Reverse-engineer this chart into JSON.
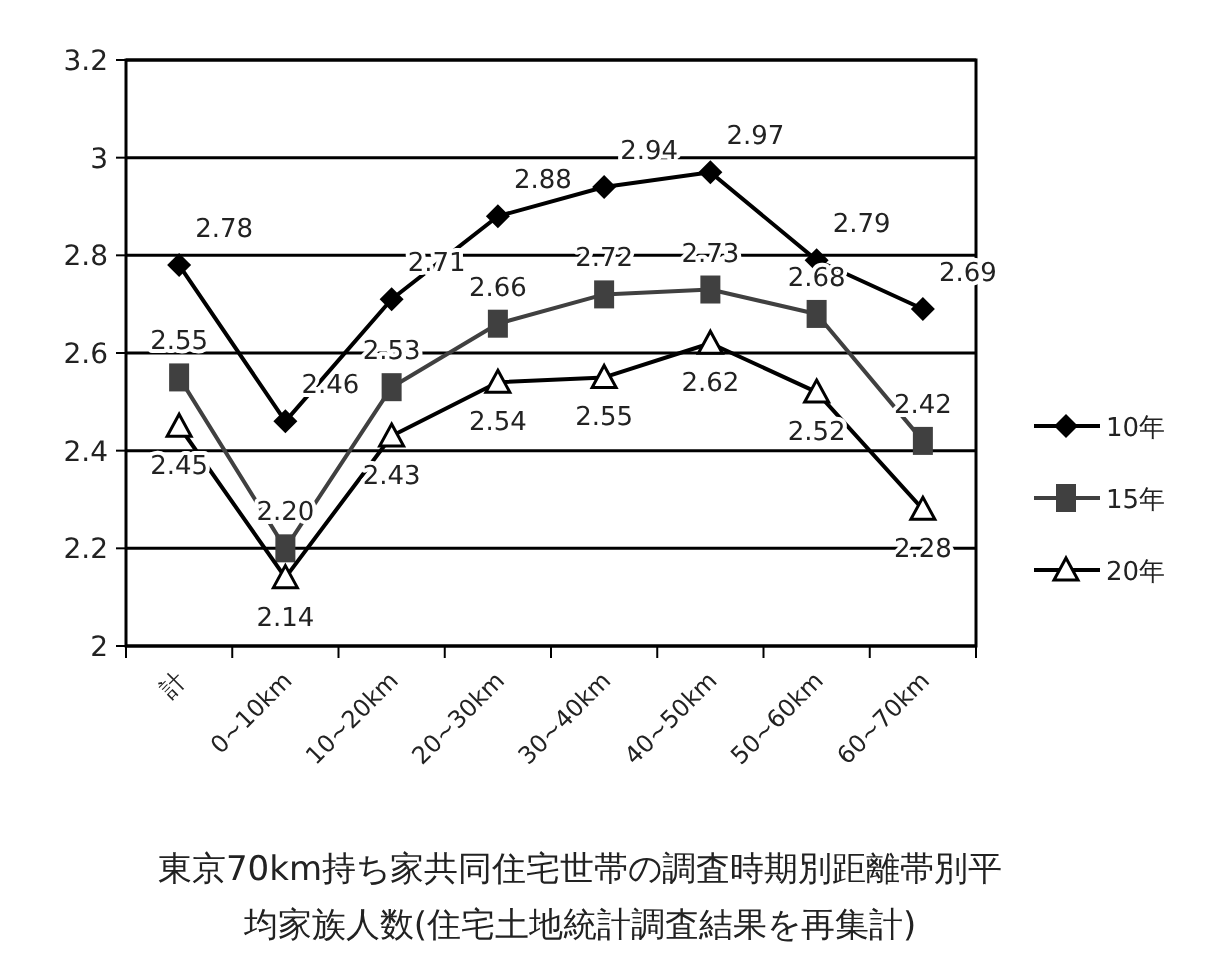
{
  "chart_data": {
    "type": "line",
    "categories": [
      "計",
      "0~10km",
      "10~20km",
      "20~30km",
      "30~40km",
      "40~50km",
      "50~60km",
      "60~70km"
    ],
    "series": [
      {
        "name": "10年",
        "color": "#000000",
        "marker": "diamond",
        "values": [
          2.78,
          2.46,
          2.71,
          2.88,
          2.94,
          2.97,
          2.79,
          2.69
        ],
        "value_labels": [
          "2.78",
          "2.46",
          "2.71",
          "2.88",
          "2.94",
          "2.97",
          "2.79",
          "2.69"
        ]
      },
      {
        "name": "15年",
        "color": "#404040",
        "marker": "square",
        "values": [
          2.55,
          2.2,
          2.53,
          2.66,
          2.72,
          2.73,
          2.68,
          2.42
        ],
        "value_labels": [
          "2.55",
          "2.20",
          "2.53",
          "2.66",
          "2.72",
          "2.73",
          "2.68",
          "2.42"
        ]
      },
      {
        "name": "20年",
        "color": "#000000",
        "marker": "triangle",
        "values": [
          2.45,
          2.14,
          2.43,
          2.54,
          2.55,
          2.62,
          2.52,
          2.28
        ],
        "value_labels": [
          "2.45",
          "2.14",
          "2.43",
          "2.54",
          "2.55",
          "2.62",
          "2.52",
          "2.28"
        ]
      }
    ],
    "ylim": [
      2,
      3.2
    ],
    "yticks": [
      2,
      {
        "value": 2.2,
        "label": "2.2"
      },
      {
        "value": 2.4,
        "label": "2.4"
      },
      {
        "value": 2.6,
        "label": "2.6"
      },
      {
        "value": 2.8,
        "label": "2.8"
      },
      3,
      {
        "value": 3.2,
        "label": "3.2"
      }
    ],
    "grid": "y",
    "legend": "right",
    "annotations": [
      "東京70km持ち家共同住宅世帯の調査時期別距離帯別平",
      "均家族人数(住宅土地統計調査結果を再集計)"
    ]
  }
}
